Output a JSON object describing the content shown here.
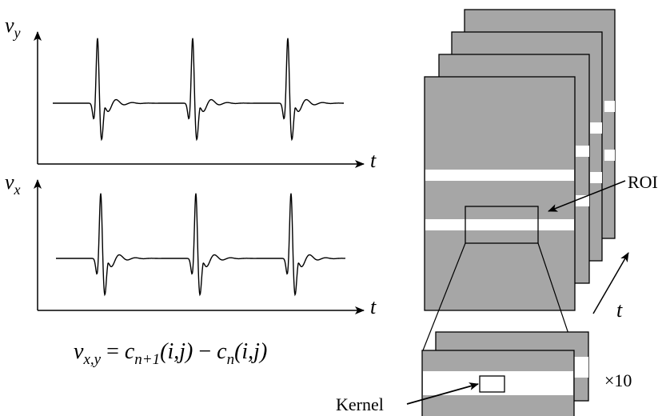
{
  "top_plot": {
    "y_label_base": "v",
    "y_label_sub": "y",
    "x_label": "t"
  },
  "bottom_plot": {
    "y_label_base": "v",
    "y_label_sub": "x",
    "x_label": "t"
  },
  "formula": {
    "lhs_base": "v",
    "lhs_sub": "x,y",
    "equals": " = ",
    "t1_base": "c",
    "t1_sub": "n+1",
    "t1_args": "(i,j)",
    "minus": " − ",
    "t2_base": "c",
    "t2_sub": "n",
    "t2_args": "(i,j)"
  },
  "labels": {
    "roi": "ROI",
    "kernel": "Kernel",
    "time": "t",
    "magnification": "×10"
  },
  "colors": {
    "frame_fill": "#a6a6a6",
    "stripe": "#ffffff",
    "line": "#000000"
  }
}
